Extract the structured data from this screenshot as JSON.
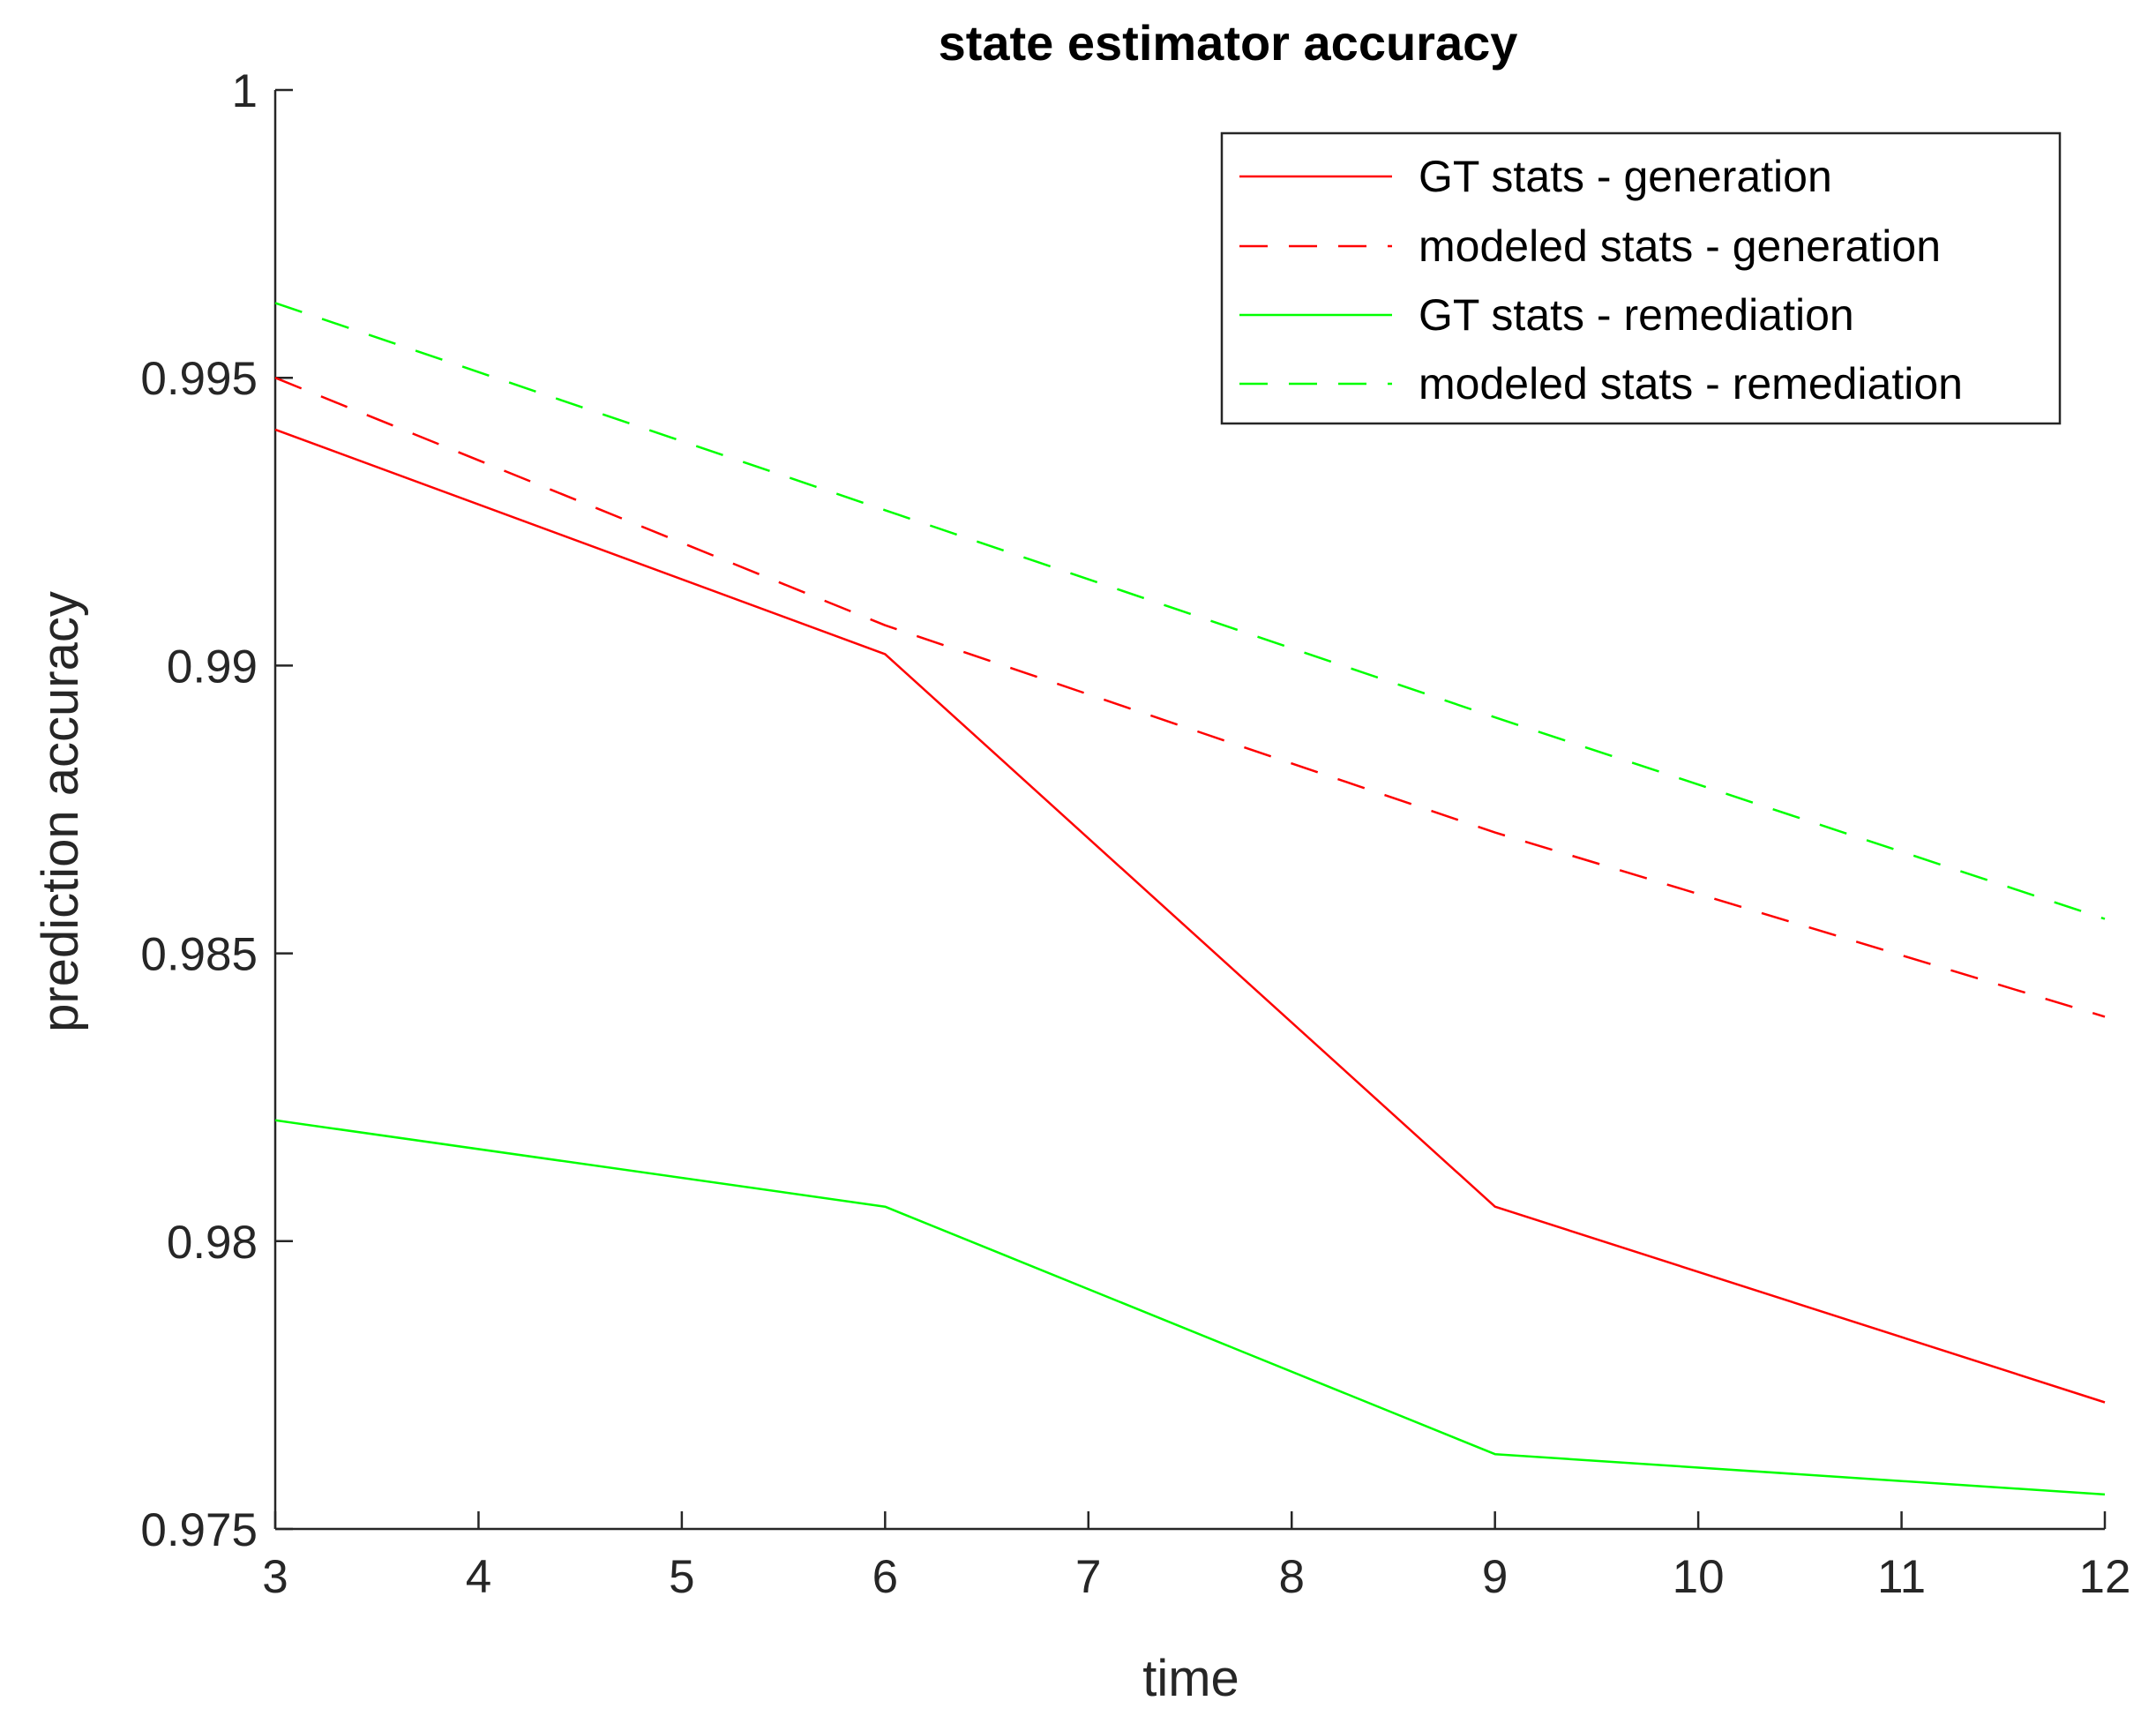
{
  "chart_data": {
    "type": "line",
    "title": "state estimator accuracy",
    "xlabel": "time",
    "ylabel": "prediction accuracy",
    "xlim": [
      3,
      12
    ],
    "ylim": [
      0.975,
      1
    ],
    "xticks": [
      3,
      4,
      5,
      6,
      7,
      8,
      9,
      10,
      11,
      12
    ],
    "xtick_labels": [
      "3",
      "4",
      "5",
      "6",
      "7",
      "8",
      "9",
      "10",
      "11",
      "12"
    ],
    "yticks": [
      0.975,
      0.98,
      0.985,
      0.99,
      0.995,
      1
    ],
    "ytick_labels": [
      "0.975",
      "0.98",
      "0.985",
      "0.99",
      "0.995",
      "1"
    ],
    "grid": false,
    "legend_position": "top-right",
    "x": [
      3,
      6,
      9,
      12
    ],
    "series": [
      {
        "name": "GT stats - generation",
        "values": [
          0.9941,
          0.9902,
          0.9806,
          0.9772
        ],
        "color": "#ff0000",
        "style": "solid"
      },
      {
        "name": "modeled stats - generation",
        "values": [
          0.995,
          0.9907,
          0.9871,
          0.9839
        ],
        "color": "#ff0000",
        "style": "dashed"
      },
      {
        "name": "GT stats - remediation",
        "values": [
          0.9821,
          0.9806,
          0.9763,
          0.9756
        ],
        "color": "#00ff00",
        "style": "solid"
      },
      {
        "name": "modeled stats - remediation",
        "values": [
          0.9963,
          0.9927,
          0.9891,
          0.9856
        ],
        "color": "#00ff00",
        "style": "dashed"
      }
    ]
  }
}
